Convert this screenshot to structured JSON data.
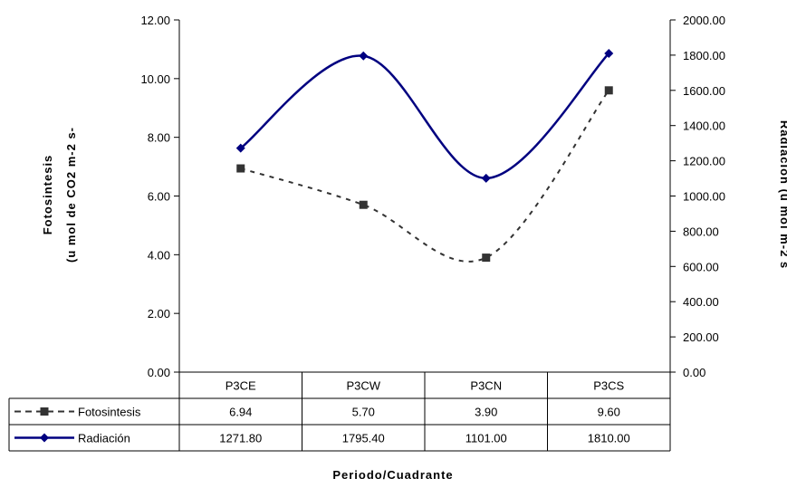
{
  "chart_data": {
    "type": "line",
    "categories": [
      "P3CE",
      "P3CW",
      "P3CN",
      "P3CS"
    ],
    "series": [
      {
        "name": "Fotosintesis",
        "axis": "left",
        "values": [
          6.94,
          5.7,
          3.9,
          9.6
        ],
        "labels": [
          "6.94",
          "5.70",
          "3.90",
          "9.60"
        ],
        "color": "#333333",
        "style": "dashed",
        "marker": "square"
      },
      {
        "name": "Radiación",
        "axis": "right",
        "values": [
          1271.8,
          1795.4,
          1101.0,
          1810.0
        ],
        "labels": [
          "1271.80",
          "1795.40",
          "1101.00",
          "1810.00"
        ],
        "color": "#000080",
        "style": "solid",
        "marker": "diamond"
      }
    ],
    "y_left": {
      "min": 0,
      "max": 12,
      "step": 2,
      "ticks": [
        "0.00",
        "2.00",
        "4.00",
        "6.00",
        "8.00",
        "10.00",
        "12.00"
      ],
      "label_line1": "Fotosintesis",
      "label_line2": "(u mol de CO2 m-2 s-"
    },
    "y_right": {
      "min": 0,
      "max": 2000,
      "step": 200,
      "ticks": [
        "0.00",
        "200.00",
        "400.00",
        "600.00",
        "800.00",
        "1000.00",
        "1200.00",
        "1400.00",
        "1600.00",
        "1800.00",
        "2000.00"
      ],
      "label": "Radiación (u mol m-2 s"
    },
    "xlabel": "Periodo/Cuadrante",
    "grid": false,
    "legend": "data-table"
  }
}
